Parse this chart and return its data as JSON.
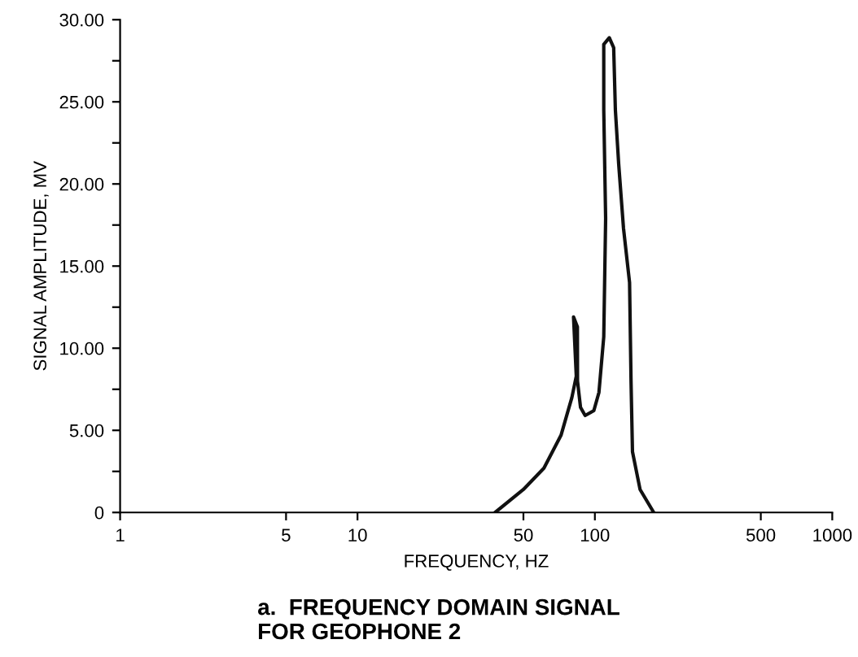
{
  "chart_data": {
    "type": "line",
    "xlabel": "FREQUENCY, HZ",
    "ylabel": "SIGNAL AMPLITUDE, MV",
    "annotations": [
      "a.  FREQUENCY DOMAIN SIGNAL\nFOR GEOPHONE 2"
    ],
    "log": "x",
    "xlim": [
      1,
      1000
    ],
    "ylim": [
      0,
      30
    ],
    "xticks": [
      1,
      5,
      10,
      50,
      100,
      500,
      1000
    ],
    "yticks": [
      {
        "value": 0,
        "label": "0"
      },
      {
        "value": 2.5,
        "label": null
      },
      {
        "value": 5,
        "label": "5.00"
      },
      {
        "value": 7.5,
        "label": null
      },
      {
        "value": 10,
        "label": "10.00"
      },
      {
        "value": 12.5,
        "label": null
      },
      {
        "value": 15,
        "label": "15.00"
      },
      {
        "value": 17.5,
        "label": null
      },
      {
        "value": 20,
        "label": "20.00"
      },
      {
        "value": 22.5,
        "label": null
      },
      {
        "value": 25,
        "label": "25.00"
      },
      {
        "value": 27.5,
        "label": null
      },
      {
        "value": 30,
        "label": "30.00"
      }
    ],
    "grid": false,
    "marker": "none",
    "line_style": "solid",
    "series": [
      {
        "color": "#111111",
        "x": [
          38,
          50,
          61,
          72,
          80,
          83.5,
          81.3,
          84.4,
          84.5,
          87,
          91,
          99,
          104,
          109,
          111,
          109,
          109,
          115,
          120,
          122,
          126,
          132,
          140,
          142,
          144,
          155,
          177
        ],
        "values": [
          0,
          1.4,
          2.7,
          4.7,
          7.0,
          8.3,
          11.9,
          11.3,
          8.0,
          6.4,
          5.9,
          6.2,
          7.3,
          10.7,
          17.9,
          24.5,
          28.5,
          28.9,
          28.3,
          24.5,
          21.2,
          17.3,
          14,
          8,
          3.7,
          1.4,
          0
        ]
      }
    ]
  }
}
